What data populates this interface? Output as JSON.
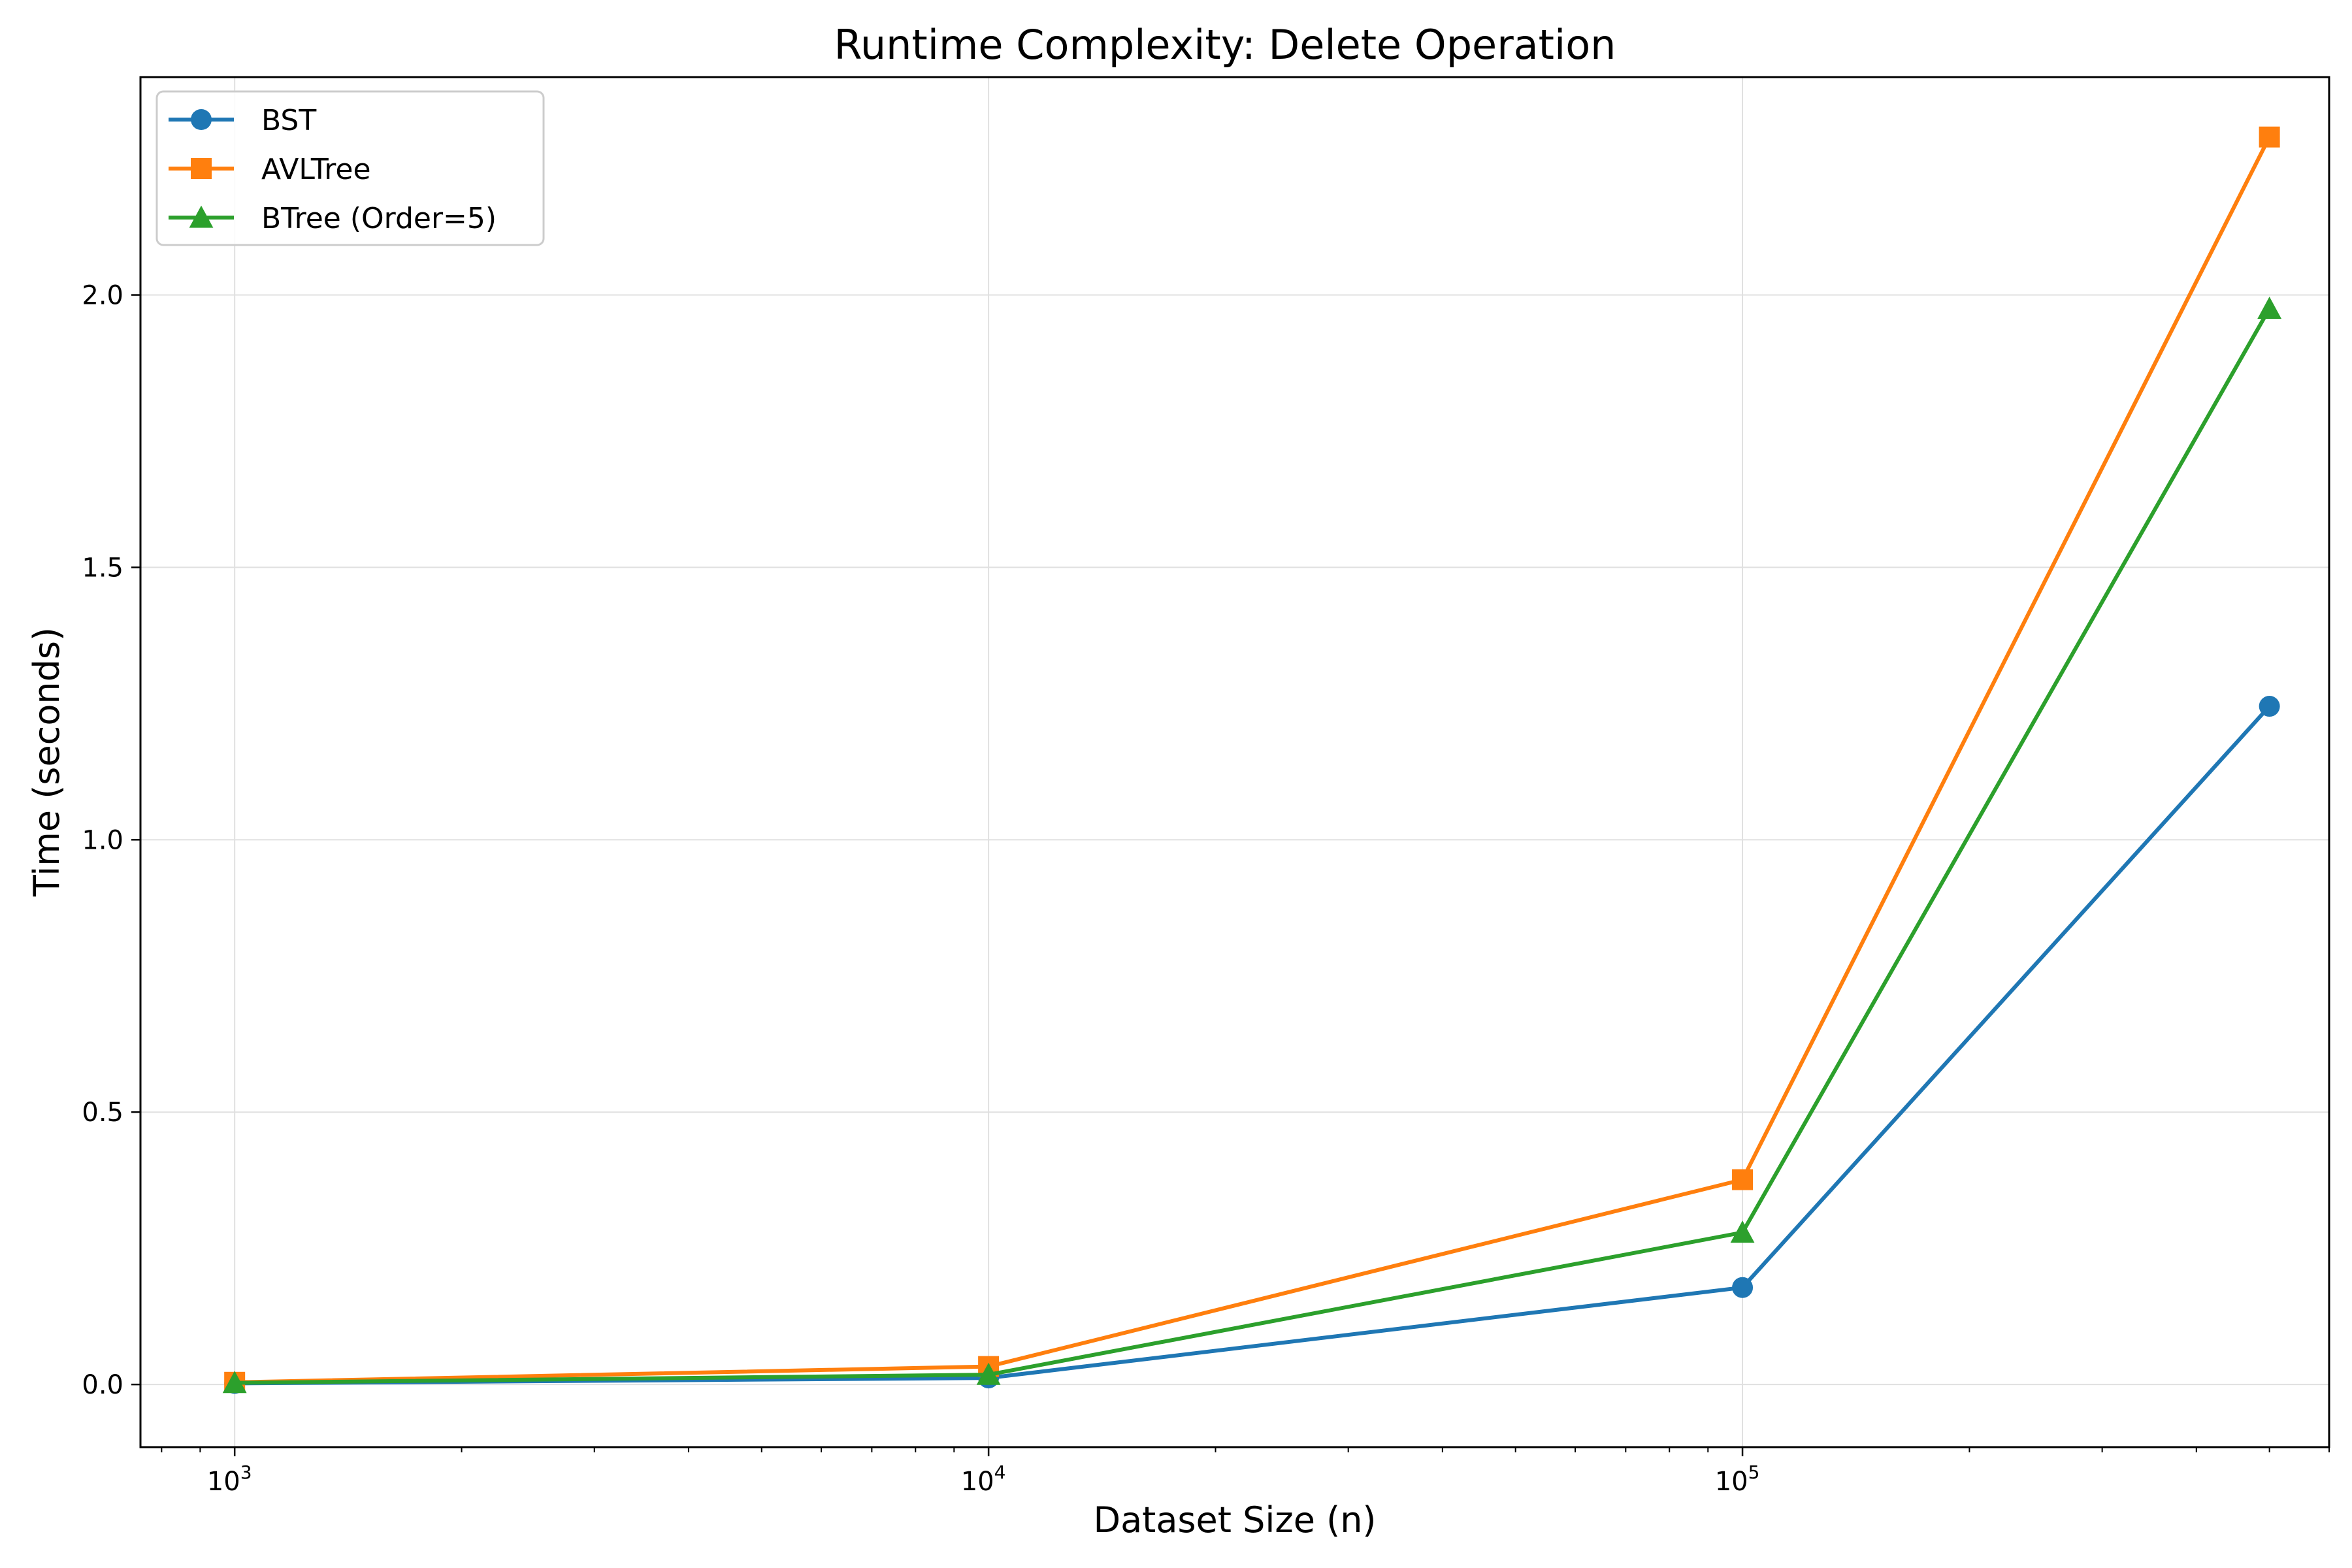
{
  "chart_data": {
    "type": "line",
    "title": "Runtime Complexity: Delete Operation",
    "xlabel": "Dataset Size (n)",
    "ylabel": "Time (seconds)",
    "xscale": "log",
    "xlim": [
      750,
      600000
    ],
    "ylim": [
      -0.115,
      2.4
    ],
    "x": [
      1000,
      10000,
      100000,
      500000
    ],
    "xticks": [
      {
        "base": "10",
        "exp": "3",
        "value": 1000
      },
      {
        "base": "10",
        "exp": "4",
        "value": 10000
      },
      {
        "base": "10",
        "exp": "5",
        "value": 100000
      }
    ],
    "yticks": [
      {
        "label": "0.0",
        "value": 0.0
      },
      {
        "label": "0.5",
        "value": 0.5
      },
      {
        "label": "1.0",
        "value": 1.0
      },
      {
        "label": "1.5",
        "value": 1.5
      },
      {
        "label": "2.0",
        "value": 2.0
      }
    ],
    "grid": true,
    "legend_position": "upper-left",
    "series": [
      {
        "name": "BST",
        "color": "#1f77b4",
        "marker": "circle",
        "values": [
          0.002,
          0.012,
          0.178,
          1.245
        ]
      },
      {
        "name": "AVLTree",
        "color": "#ff7f0e",
        "marker": "square",
        "values": [
          0.004,
          0.033,
          0.376,
          2.29
        ]
      },
      {
        "name": "BTree (Order=5)",
        "color": "#2ca02c",
        "marker": "triangle",
        "values": [
          0.003,
          0.018,
          0.279,
          1.975
        ]
      }
    ]
  }
}
